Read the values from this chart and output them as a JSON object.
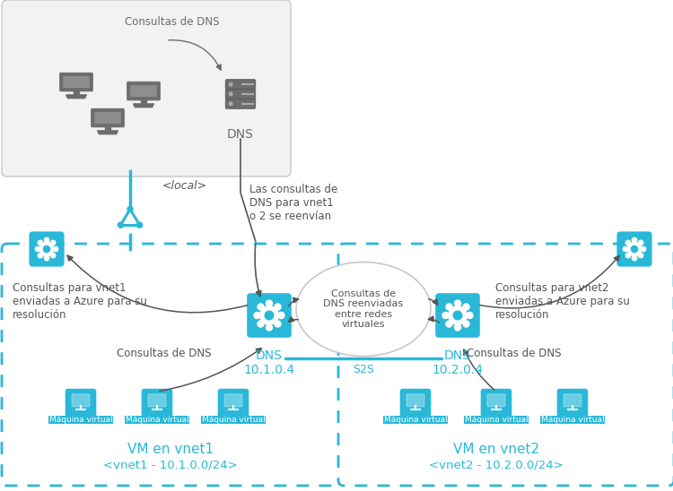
{
  "bg": "#ffffff",
  "cyan": "#29b8d8",
  "gray_icon": "#6d6d6d",
  "gray_text": "#555555",
  "light_gray": "#c8c8c8",
  "box_bg": "#f2f2f2",
  "texts": {
    "consultas_dns_top": "Consultas de DNS",
    "local_label": "<local>",
    "dns_local": "DNS",
    "las_consultas": "Las consultas de\nDNS para vnet1\no 2 se reenvían",
    "consultas_vnet1": "Consultas para vnet1\nenviadas a Azure para su\nresolución",
    "consultas_dns": "Consultas de DNS",
    "dns_1": "DNS\n10.1.0.4",
    "dns_2": "DNS\n10.2.0.4",
    "consultas_centro": "Consultas de\nDNS reenviadas\nentre redes\nvirtuales",
    "s2s": "S2S",
    "vm_vnet1": "VM en vnet1",
    "vnet1_label": "<vnet1 - 10.1.0.0/24>",
    "vm_vnet2": "VM en vnet2",
    "vnet2_label": "<vnet2 - 10.2.0.0/24>",
    "consultas_vnet2": "Consultas para vnet2\nenviadas a Azure para su\nresolución",
    "maquina_virtual": "Máquina virtual"
  }
}
